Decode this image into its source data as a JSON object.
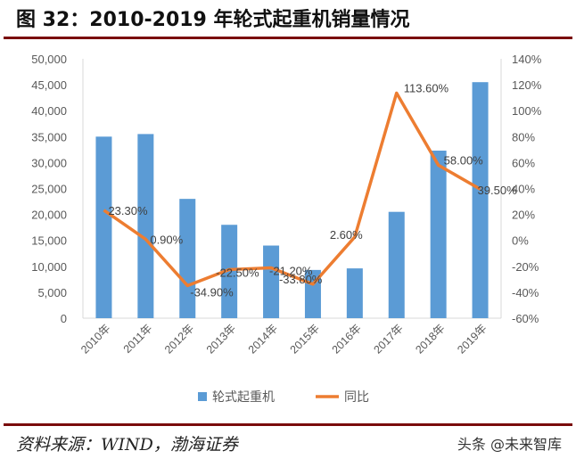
{
  "title": "图 32：2010-2019 年轮式起重机销量情况",
  "source": "资料来源：WIND，渤海证券",
  "watermark": "头条 @未来智库",
  "chart_data": {
    "type": "bar+line",
    "categories": [
      "2010年",
      "2011年",
      "2012年",
      "2013年",
      "2014年",
      "2015年",
      "2016年",
      "2017年",
      "2018年",
      "2019年"
    ],
    "series": [
      {
        "name": "轮式起重机",
        "type": "bar",
        "axis": "left",
        "color": "#5B9BD5",
        "values": [
          35000,
          35500,
          23000,
          18000,
          14000,
          9300,
          9600,
          20500,
          32300,
          45500
        ]
      },
      {
        "name": "同比",
        "type": "line",
        "axis": "right",
        "color": "#ED7D31",
        "values": [
          23.3,
          0.9,
          -34.9,
          -22.5,
          -21.2,
          -33.8,
          2.6,
          113.6,
          58.0,
          39.5
        ],
        "labels": [
          "23.30%",
          "0.90%",
          "-34.90%",
          "-22.50%",
          "-21.20%",
          "-33.80%",
          "2.60%",
          "113.60%",
          "58.00%",
          "39.50%"
        ]
      }
    ],
    "ylim_left": [
      0,
      50000
    ],
    "yticks_left": [
      "0",
      "5,000",
      "10,000",
      "15,000",
      "20,000",
      "25,000",
      "30,000",
      "35,000",
      "40,000",
      "45,000",
      "50,000"
    ],
    "ylim_right": [
      -60,
      140
    ],
    "yticks_right": [
      "-60%",
      "-40%",
      "-20%",
      "0%",
      "20%",
      "40%",
      "60%",
      "80%",
      "100%",
      "120%",
      "140%"
    ],
    "grid": false,
    "legend": "bottom"
  }
}
